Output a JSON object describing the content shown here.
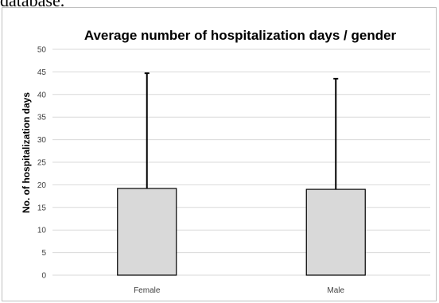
{
  "page": {
    "top_fragment": "database."
  },
  "chart_data": {
    "type": "bar",
    "title": "Average number of hospitalization  days / gender",
    "xlabel": "",
    "ylabel": "No. of hospitalization days",
    "categories": [
      "Female",
      "Male"
    ],
    "values": [
      19.2,
      19.0
    ],
    "error_upper": [
      44.7,
      43.5
    ],
    "ylim": [
      0,
      50
    ],
    "yticks": [
      0,
      5,
      10,
      15,
      20,
      25,
      30,
      35,
      40,
      45,
      50
    ],
    "grid": true,
    "legend": "none",
    "colors": {
      "bar_fill": "#d9d9d9",
      "bar_stroke": "#000000",
      "grid": "#d9d9d9",
      "error_bar": "#000000"
    }
  }
}
